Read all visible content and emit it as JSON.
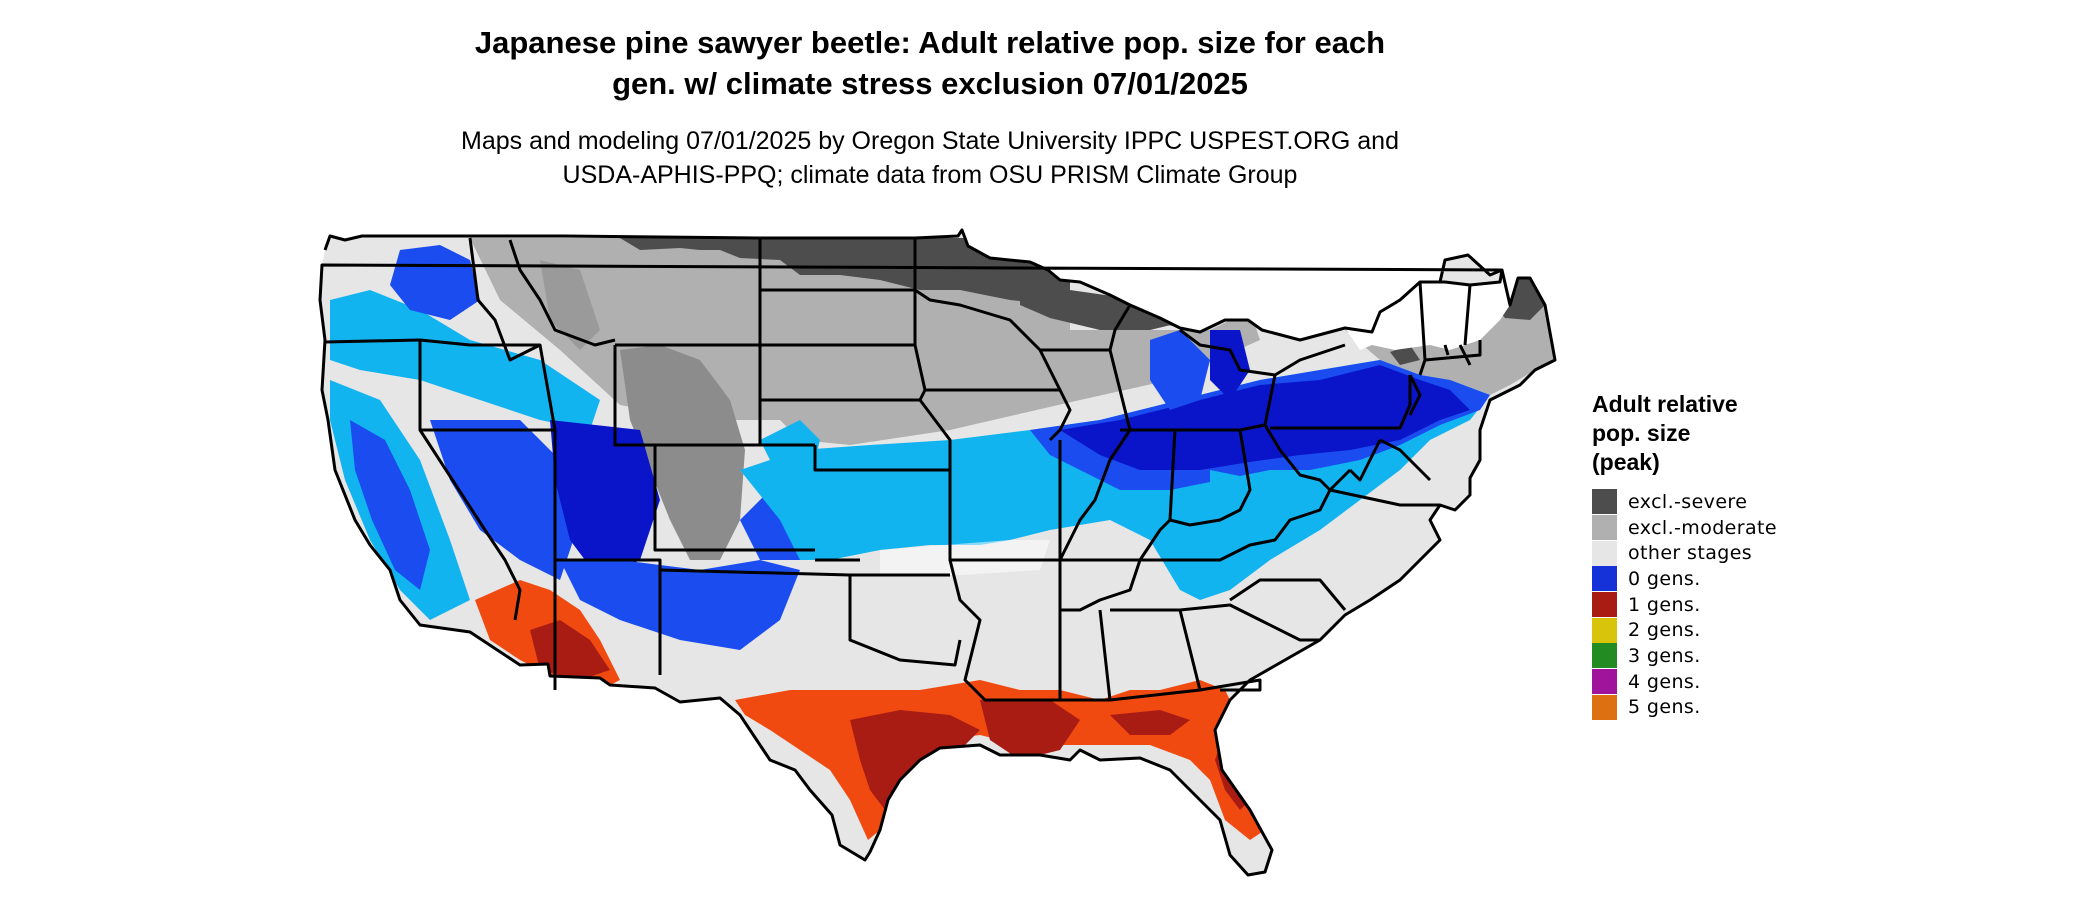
{
  "title_line1": "Japanese pine sawyer beetle: Adult relative pop. size for each",
  "title_line2": "gen. w/ climate stress exclusion 07/01/2025",
  "subtitle_line1": "Maps and modeling 07/01/2025 by Oregon State University IPPC USPEST.ORG and",
  "subtitle_line2": "USDA-APHIS-PPQ; climate data from OSU PRISM Climate Group",
  "legend": {
    "title_line1": "Adult relative",
    "title_line2": "pop. size",
    "title_line3": "(peak)",
    "items": [
      {
        "label": "excl.-severe",
        "color": "#4d4d4d"
      },
      {
        "label": "excl.-moderate",
        "color": "#b0b0b0"
      },
      {
        "label": "other stages",
        "color": "#e6e6e6"
      },
      {
        "label": "0 gens.",
        "color": "#1432d8"
      },
      {
        "label": "1 gens.",
        "color": "#a81c14"
      },
      {
        "label": "2 gens.",
        "color": "#d8c40a"
      },
      {
        "label": "3 gens.",
        "color": "#228b22"
      },
      {
        "label": "4 gens.",
        "color": "#a0149c"
      },
      {
        "label": "5 gens.",
        "color": "#dd7010"
      }
    ]
  },
  "map_colors": {
    "outline": "#000000",
    "other_stages": "#e6e6e6",
    "excl_severe": "#4d4d4d",
    "excl_moderate": "#b0b0b0",
    "zero_gens_dark": "#0a14c8",
    "zero_gens_mid": "#1a4cf0",
    "zero_gens_light": "#12b4f0",
    "one_gen_dark": "#a81c14",
    "one_gen_orange": "#f04a10"
  }
}
